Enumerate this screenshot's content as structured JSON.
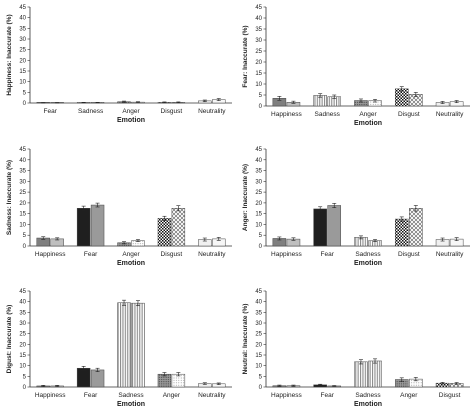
{
  "figure": {
    "panels": [
      {
        "id": "happiness",
        "ylabel": "Happiness: Inaccurate (%)",
        "xlabel": "Emotion"
      },
      {
        "id": "fear",
        "ylabel": "Fear: Inaccurate (%)",
        "xlabel": "Emotion"
      },
      {
        "id": "sadness",
        "ylabel": "Sadness: Inaccurate (%)",
        "xlabel": "Emotion"
      },
      {
        "id": "anger",
        "ylabel": "Anger: Inaccurate (%)",
        "xlabel": "Emotion"
      },
      {
        "id": "disgust",
        "ylabel": "Digust: Inaccurate (%)",
        "xlabel": "Emotion"
      },
      {
        "id": "neutral",
        "ylabel": "Neutral: Inaccurate (%)",
        "xlabel": "Emotion"
      }
    ]
  },
  "styles": {
    "Happiness": [
      "#7f7f7f",
      "#bfbfbf"
    ],
    "Fear": [
      "#1f1f1f",
      "#9a9a9a"
    ],
    "Sadness": [
      "vstripe",
      "vstripe"
    ],
    "Anger": [
      "dots",
      "dots-light"
    ],
    "Disgust": [
      "checker",
      "diag"
    ],
    "Neutrality": [
      "#f0f0f0",
      "#f7f7f7"
    ]
  },
  "chart_data": [
    {
      "type": "bar",
      "xlabel": "Emotion",
      "ylabel": "Happiness: Inaccurate (%)",
      "ylim": [
        0,
        45
      ],
      "yticks": [
        0,
        5,
        10,
        15,
        20,
        25,
        30,
        35,
        40,
        45
      ],
      "categories": [
        "Fear",
        "Sadness",
        "Anger",
        "Disgust",
        "Neutrality"
      ],
      "series": [
        {
          "values": [
            0.1,
            0.2,
            0.6,
            0.3,
            1.0
          ],
          "errors": [
            0.1,
            0.1,
            0.3,
            0.2,
            0.4
          ]
        },
        {
          "values": [
            0.1,
            0.2,
            0.4,
            0.3,
            1.6
          ],
          "errors": [
            0.1,
            0.1,
            0.2,
            0.2,
            0.5
          ]
        }
      ]
    },
    {
      "type": "bar",
      "xlabel": "Emotion",
      "ylabel": "Fear: Inaccurate (%)",
      "ylim": [
        0,
        45
      ],
      "yticks": [
        0,
        5,
        10,
        15,
        20,
        25,
        30,
        35,
        40,
        45
      ],
      "categories": [
        "Happiness",
        "Sadness",
        "Anger",
        "Disgust",
        "Neutrality"
      ],
      "series": [
        {
          "values": [
            3.5,
            4.8,
            2.5,
            7.8,
            1.6
          ],
          "errors": [
            0.9,
            0.8,
            0.7,
            1.0,
            0.5
          ]
        },
        {
          "values": [
            1.7,
            4.2,
            2.4,
            5.3,
            2.0
          ],
          "errors": [
            0.5,
            0.8,
            0.6,
            0.9,
            0.5
          ]
        }
      ]
    },
    {
      "type": "bar",
      "xlabel": "Emotion",
      "ylabel": "Sadness: Inaccurate (%)",
      "ylim": [
        0,
        45
      ],
      "yticks": [
        0,
        5,
        10,
        15,
        20,
        25,
        30,
        35,
        40,
        45
      ],
      "categories": [
        "Happiness",
        "Fear",
        "Anger",
        "Disgust",
        "Neutrality"
      ],
      "series": [
        {
          "values": [
            3.7,
            17.5,
            1.5,
            12.8,
            3.0
          ],
          "errors": [
            0.6,
            1.0,
            0.5,
            1.0,
            0.7
          ]
        },
        {
          "values": [
            3.3,
            19.0,
            2.5,
            17.5,
            3.3
          ],
          "errors": [
            0.5,
            0.9,
            0.5,
            1.2,
            0.7
          ]
        }
      ]
    },
    {
      "type": "bar",
      "xlabel": "Emotion",
      "ylabel": "Anger: Inaccurate (%)",
      "ylim": [
        0,
        45
      ],
      "yticks": [
        0,
        5,
        10,
        15,
        20,
        25,
        30,
        35,
        40,
        45
      ],
      "categories": [
        "Happiness",
        "Fear",
        "Sadness",
        "Disgust",
        "Neutrality"
      ],
      "series": [
        {
          "values": [
            3.5,
            17.2,
            4.0,
            12.5,
            3.0
          ],
          "errors": [
            0.7,
            1.0,
            0.7,
            1.0,
            0.7
          ]
        },
        {
          "values": [
            3.2,
            18.8,
            2.5,
            17.5,
            3.2
          ],
          "errors": [
            0.6,
            1.0,
            0.5,
            1.3,
            0.7
          ]
        }
      ]
    },
    {
      "type": "bar",
      "xlabel": "Emotion",
      "ylabel": "Digust: Inaccurate (%)",
      "ylim": [
        0,
        45
      ],
      "yticks": [
        0,
        5,
        10,
        15,
        20,
        25,
        30,
        35,
        40,
        45
      ],
      "categories": [
        "Happiness",
        "Fear",
        "Sadness",
        "Anger",
        "Neutrality"
      ],
      "series": [
        {
          "values": [
            0.5,
            8.8,
            39.5,
            6.0,
            1.6
          ],
          "errors": [
            0.3,
            0.9,
            1.2,
            0.8,
            0.4
          ]
        },
        {
          "values": [
            0.5,
            8.0,
            39.3,
            6.0,
            1.5
          ],
          "errors": [
            0.3,
            0.8,
            1.2,
            0.8,
            0.4
          ]
        }
      ]
    },
    {
      "type": "bar",
      "xlabel": "Emotion",
      "ylabel": "Neutral: Inaccurate (%)",
      "ylim": [
        0,
        45
      ],
      "yticks": [
        0,
        5,
        10,
        15,
        20,
        25,
        30,
        35,
        40,
        45
      ],
      "categories": [
        "Happiness",
        "Fear",
        "Sadness",
        "Anger",
        "Disgust"
      ],
      "series": [
        {
          "values": [
            0.6,
            1.0,
            11.8,
            3.5,
            1.8
          ],
          "errors": [
            0.3,
            0.3,
            1.0,
            0.8,
            0.4
          ]
        },
        {
          "values": [
            0.6,
            0.5,
            12.2,
            3.7,
            1.7
          ],
          "errors": [
            0.3,
            0.2,
            1.0,
            0.8,
            0.4
          ]
        }
      ]
    }
  ]
}
